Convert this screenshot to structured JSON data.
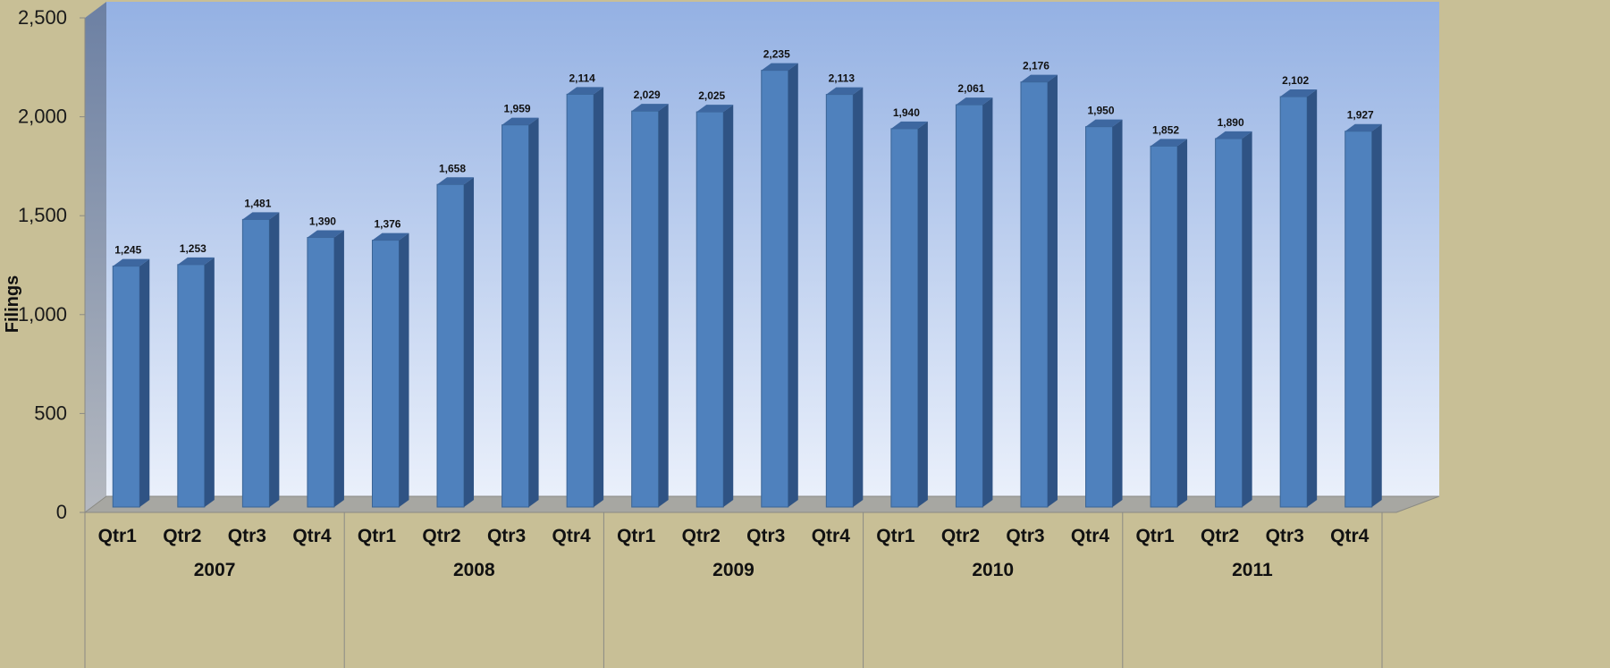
{
  "chart_data": {
    "type": "bar",
    "ylabel": "Filings",
    "ylim": [
      0,
      2500
    ],
    "yticks": [
      "0",
      "500",
      "1,000",
      "1,500",
      "2,000",
      "2,500"
    ],
    "groups": [
      "2007",
      "2008",
      "2009",
      "2010",
      "2011"
    ],
    "categories": [
      "Qtr1",
      "Qtr2",
      "Qtr3",
      "Qtr4",
      "Qtr1",
      "Qtr2",
      "Qtr3",
      "Qtr4",
      "Qtr1",
      "Qtr2",
      "Qtr3",
      "Qtr4",
      "Qtr1",
      "Qtr2",
      "Qtr3",
      "Qtr4",
      "Qtr1",
      "Qtr2",
      "Qtr3",
      "Qtr4"
    ],
    "values": [
      1245,
      1253,
      1481,
      1390,
      1376,
      1658,
      1959,
      2114,
      2029,
      2025,
      2235,
      2113,
      1940,
      2061,
      2176,
      1950,
      1852,
      1890,
      2102,
      1927
    ],
    "labels": [
      "1,245",
      "1,253",
      "1,481",
      "1,390",
      "1,376",
      "1,658",
      "1,959",
      "2,114",
      "2,029",
      "2,025",
      "2,235",
      "2,113",
      "1,940",
      "2,061",
      "2,176",
      "1,950",
      "1,852",
      "1,890",
      "2,102",
      "1,927"
    ],
    "grid": false,
    "legend": "none",
    "colors": {
      "bar_front": "#4f81bd",
      "bar_side": "#2f5384",
      "bar_top": "#3d67a0",
      "background": "#c8bf96",
      "wall_top": "#94b1e3",
      "wall_bottom": "#eaf0fb",
      "floor": "#a7a7a2"
    }
  }
}
